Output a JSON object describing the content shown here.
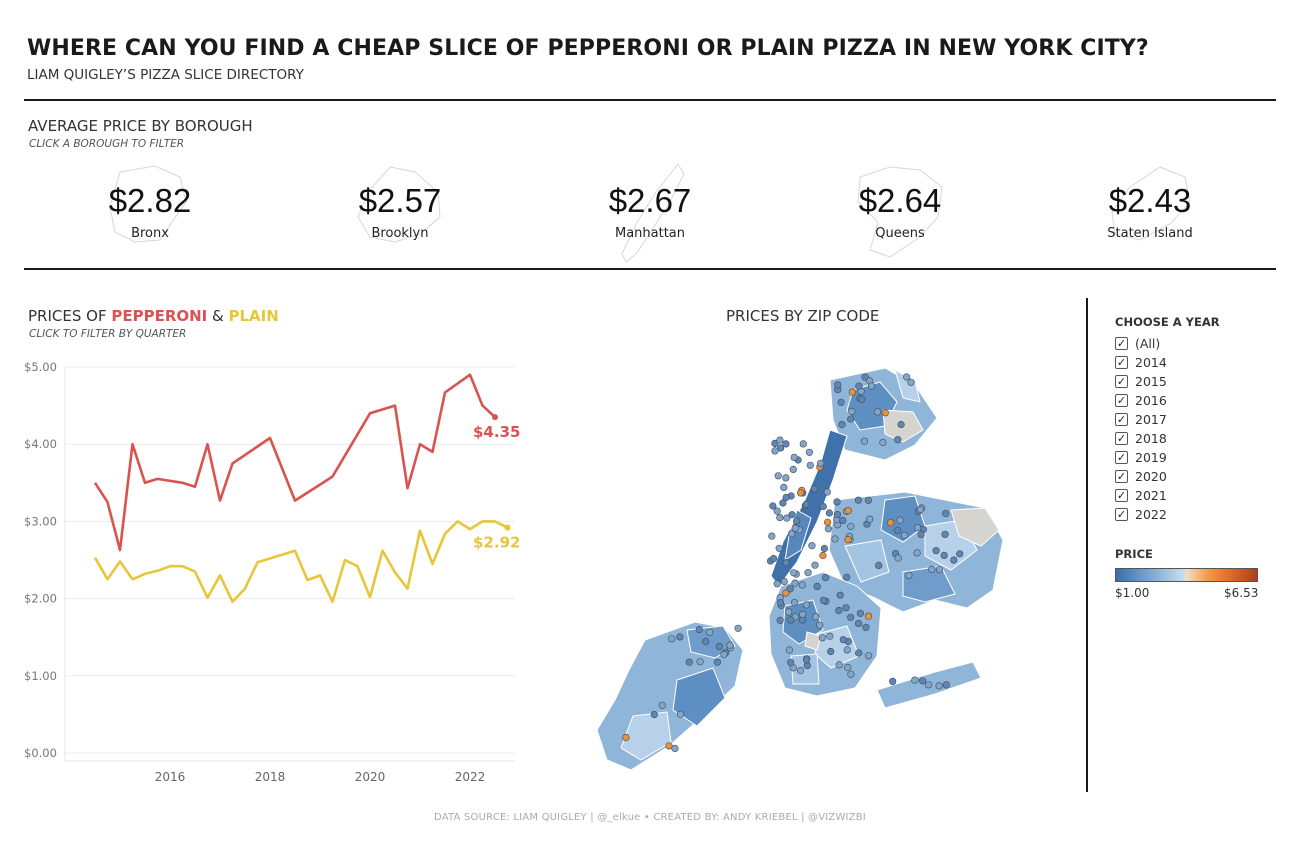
{
  "header": {
    "title": "WHERE CAN YOU FIND A CHEAP SLICE OF PEPPERONI OR PLAIN PIZZA IN NEW YORK CITY?",
    "subtitle": "LIAM QUIGLEY’S PIZZA SLICE DIRECTORY"
  },
  "borough_section": {
    "title": "AVERAGE PRICE BY BOROUGH",
    "hint": "CLICK A BOROUGH TO FILTER",
    "boroughs": [
      {
        "name": "Bronx",
        "price": "$2.82"
      },
      {
        "name": "Brooklyn",
        "price": "$2.57"
      },
      {
        "name": "Manhattan",
        "price": "$2.67"
      },
      {
        "name": "Queens",
        "price": "$2.64"
      },
      {
        "name": "Staten Island",
        "price": "$2.43"
      }
    ]
  },
  "line_section": {
    "title_prefix": "PRICES OF ",
    "title_pepperoni": "PEPPERONI",
    "title_amp": " & ",
    "title_plain": "PLAIN",
    "hint": "CLICK TO FILTER BY QUARTER"
  },
  "map_section": {
    "title": "PRICES BY ZIP CODE"
  },
  "filter": {
    "title": "CHOOSE A YEAR",
    "items": [
      "(All)",
      "2014",
      "2015",
      "2016",
      "2017",
      "2018",
      "2019",
      "2020",
      "2021",
      "2022"
    ],
    "check_glyph": "✓"
  },
  "price_legend": {
    "title": "PRICE",
    "min": "$1.00",
    "max": "$6.53"
  },
  "footer": "DATA SOURCE: LIAM QUIGLEY | @_elkue  •  CREATED BY: ANDY KRIEBEL | @VIZWIZBI",
  "colors": {
    "pepperoni": "#d9534f",
    "plain": "#e8c53a",
    "map_low": "#3a6ea8",
    "map_high": "#a8401c"
  },
  "chart_data": {
    "type": "line",
    "x_unit": "year",
    "x_ticks": [
      2016,
      2018,
      2020,
      2022
    ],
    "xlim": [
      2013.9,
      2022.9
    ],
    "y_ticks": [
      0,
      1,
      2,
      3,
      4,
      5
    ],
    "y_tick_labels": [
      "$0.00",
      "$1.00",
      "$2.00",
      "$3.00",
      "$4.00",
      "$5.00"
    ],
    "ylim": [
      0,
      5
    ],
    "grid": true,
    "series": [
      {
        "name": "PEPPERONI",
        "color": "#d9534f",
        "end_label": "$4.35",
        "points": [
          [
            2014.5,
            3.5
          ],
          [
            2014.75,
            3.25
          ],
          [
            2015.0,
            2.63
          ],
          [
            2015.25,
            4.0
          ],
          [
            2015.5,
            3.5
          ],
          [
            2015.75,
            3.55
          ],
          [
            2016.25,
            3.5
          ],
          [
            2016.5,
            3.45
          ],
          [
            2016.75,
            4.0
          ],
          [
            2017.0,
            3.27
          ],
          [
            2017.25,
            3.75
          ],
          [
            2018.0,
            4.08
          ],
          [
            2018.5,
            3.27
          ],
          [
            2019.25,
            3.58
          ],
          [
            2020.0,
            4.4
          ],
          [
            2020.5,
            4.5
          ],
          [
            2020.75,
            3.43
          ],
          [
            2021.0,
            4.0
          ],
          [
            2021.25,
            3.9
          ],
          [
            2021.5,
            4.67
          ],
          [
            2022.0,
            4.9
          ],
          [
            2022.25,
            4.5
          ],
          [
            2022.5,
            4.35
          ]
        ]
      },
      {
        "name": "PLAIN",
        "color": "#e8c53a",
        "end_label": "$2.92",
        "points": [
          [
            2014.5,
            2.53
          ],
          [
            2014.75,
            2.25
          ],
          [
            2015.0,
            2.48
          ],
          [
            2015.25,
            2.25
          ],
          [
            2015.5,
            2.32
          ],
          [
            2015.75,
            2.36
          ],
          [
            2016.0,
            2.42
          ],
          [
            2016.25,
            2.42
          ],
          [
            2016.5,
            2.35
          ],
          [
            2016.75,
            2.01
          ],
          [
            2017.0,
            2.3
          ],
          [
            2017.25,
            1.96
          ],
          [
            2017.5,
            2.13
          ],
          [
            2017.75,
            2.47
          ],
          [
            2018.5,
            2.62
          ],
          [
            2018.75,
            2.24
          ],
          [
            2019.0,
            2.3
          ],
          [
            2019.25,
            1.96
          ],
          [
            2019.5,
            2.5
          ],
          [
            2019.75,
            2.42
          ],
          [
            2020.0,
            2.02
          ],
          [
            2020.25,
            2.62
          ],
          [
            2020.5,
            2.34
          ],
          [
            2020.75,
            2.13
          ],
          [
            2021.0,
            2.88
          ],
          [
            2021.25,
            2.45
          ],
          [
            2021.5,
            2.84
          ],
          [
            2021.75,
            3.0
          ],
          [
            2022.0,
            2.9
          ],
          [
            2022.25,
            3.0
          ],
          [
            2022.5,
            3.0
          ],
          [
            2022.75,
            2.92
          ]
        ]
      }
    ]
  }
}
